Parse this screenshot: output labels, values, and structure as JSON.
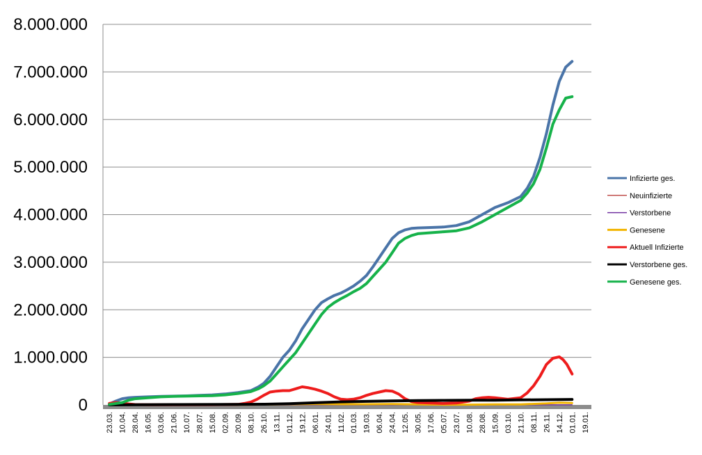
{
  "chart_data": {
    "type": "line",
    "title": "",
    "xlabel": "",
    "ylabel": "",
    "ylim": [
      0,
      8000000
    ],
    "grid": true,
    "legend_position": "right",
    "yticks": [
      {
        "value": 0,
        "label": "0"
      },
      {
        "value": 1000000,
        "label": "1.000.000"
      },
      {
        "value": 2000000,
        "label": "2.000.000"
      },
      {
        "value": 3000000,
        "label": "3.000.000"
      },
      {
        "value": 4000000,
        "label": "4.000.000"
      },
      {
        "value": 5000000,
        "label": "5.000.000"
      },
      {
        "value": 6000000,
        "label": "6.000.000"
      },
      {
        "value": 7000000,
        "label": "7.000.000"
      },
      {
        "value": 8000000,
        "label": "8.000.000"
      }
    ],
    "xticks": [
      "23.03.",
      "10.04.",
      "28.04.",
      "16.05.",
      "03.06.",
      "21.06.",
      "10.07.",
      "28.07.",
      "15.08.",
      "02.09.",
      "20.09.",
      "08.10.",
      "26.10.",
      "13.11.",
      "01.12.",
      "19.12.",
      "06.01.",
      "24.01.",
      "11.02.",
      "01.03.",
      "19.03.",
      "06.04.",
      "24.04.",
      "12.05.",
      "30.05.",
      "17.06.",
      "05.07.",
      "23.07.",
      "10.08.",
      "28.08.",
      "15.09.",
      "03.10.",
      "21.10.",
      "08.11.",
      "26.11.",
      "14.12.",
      "01.01.",
      "19.01."
    ],
    "series": [
      {
        "name": "Infizierte ges.",
        "color": "#4a74a8",
        "width": 4,
        "points": [
          [
            0,
            20000
          ],
          [
            0.5,
            80000
          ],
          [
            1,
            130000
          ],
          [
            1.5,
            150000
          ],
          [
            2,
            160000
          ],
          [
            3,
            170000
          ],
          [
            4,
            180000
          ],
          [
            5,
            185000
          ],
          [
            6,
            190000
          ],
          [
            7,
            200000
          ],
          [
            8,
            210000
          ],
          [
            9,
            230000
          ],
          [
            10,
            260000
          ],
          [
            11,
            300000
          ],
          [
            11.6,
            380000
          ],
          [
            12,
            450000
          ],
          [
            12.5,
            600000
          ],
          [
            13,
            800000
          ],
          [
            13.5,
            1000000
          ],
          [
            14,
            1150000
          ],
          [
            14.5,
            1350000
          ],
          [
            15,
            1600000
          ],
          [
            15.5,
            1800000
          ],
          [
            16,
            2000000
          ],
          [
            16.5,
            2150000
          ],
          [
            17,
            2230000
          ],
          [
            17.5,
            2300000
          ],
          [
            18,
            2350000
          ],
          [
            18.5,
            2420000
          ],
          [
            19,
            2500000
          ],
          [
            19.5,
            2600000
          ],
          [
            20,
            2720000
          ],
          [
            20.5,
            2900000
          ],
          [
            21,
            3100000
          ],
          [
            21.5,
            3300000
          ],
          [
            22,
            3500000
          ],
          [
            22.5,
            3620000
          ],
          [
            23,
            3680000
          ],
          [
            23.5,
            3710000
          ],
          [
            24,
            3720000
          ],
          [
            25,
            3730000
          ],
          [
            26,
            3740000
          ],
          [
            27,
            3770000
          ],
          [
            28,
            3850000
          ],
          [
            29,
            4000000
          ],
          [
            30,
            4150000
          ],
          [
            31,
            4250000
          ],
          [
            32,
            4380000
          ],
          [
            32.5,
            4550000
          ],
          [
            33,
            4800000
          ],
          [
            33.5,
            5200000
          ],
          [
            34,
            5700000
          ],
          [
            34.5,
            6300000
          ],
          [
            35,
            6800000
          ],
          [
            35.5,
            7100000
          ],
          [
            36,
            7220000
          ]
        ]
      },
      {
        "name": "Neuinfizierte",
        "color": "#c0504d",
        "width": 1.5,
        "points": [
          [
            0,
            0
          ],
          [
            1,
            5000
          ],
          [
            2,
            3000
          ],
          [
            3,
            1000
          ],
          [
            10,
            1000
          ],
          [
            12,
            10000
          ],
          [
            14,
            25000
          ],
          [
            16,
            20000
          ],
          [
            18,
            12000
          ],
          [
            20,
            15000
          ],
          [
            22,
            18000
          ],
          [
            24,
            5000
          ],
          [
            26,
            2000
          ],
          [
            28,
            8000
          ],
          [
            30,
            12000
          ],
          [
            32,
            10000
          ],
          [
            34,
            40000
          ],
          [
            35,
            50000
          ],
          [
            36,
            30000
          ]
        ]
      },
      {
        "name": "Verstorbene",
        "color": "#7030a0",
        "width": 1.5,
        "points": [
          [
            0,
            0
          ],
          [
            36,
            1000
          ]
        ]
      },
      {
        "name": "Genesene",
        "color": "#f2b400",
        "width": 3,
        "points": [
          [
            0,
            2000
          ],
          [
            10,
            3000
          ],
          [
            12,
            8000
          ],
          [
            14,
            15000
          ],
          [
            16,
            18000
          ],
          [
            18,
            15000
          ],
          [
            20,
            15000
          ],
          [
            22,
            18000
          ],
          [
            24,
            10000
          ],
          [
            26,
            5000
          ],
          [
            28,
            6000
          ],
          [
            30,
            10000
          ],
          [
            32,
            12000
          ],
          [
            34,
            30000
          ],
          [
            35,
            45000
          ],
          [
            36,
            40000
          ]
        ]
      },
      {
        "name": "Aktuell Infizierte",
        "color": "#ee1c1c",
        "width": 4,
        "points": [
          [
            0,
            30000
          ],
          [
            0.5,
            50000
          ],
          [
            1,
            40000
          ],
          [
            1.5,
            20000
          ],
          [
            2,
            8000
          ],
          [
            3,
            5000
          ],
          [
            5,
            4000
          ],
          [
            8,
            6000
          ],
          [
            10,
            10000
          ],
          [
            10.5,
            30000
          ],
          [
            11,
            60000
          ],
          [
            11.5,
            120000
          ],
          [
            12,
            200000
          ],
          [
            12.5,
            270000
          ],
          [
            13,
            290000
          ],
          [
            13.5,
            300000
          ],
          [
            14,
            300000
          ],
          [
            14.5,
            340000
          ],
          [
            15,
            380000
          ],
          [
            15.5,
            360000
          ],
          [
            16,
            330000
          ],
          [
            16.5,
            290000
          ],
          [
            17,
            240000
          ],
          [
            17.5,
            170000
          ],
          [
            18,
            120000
          ],
          [
            18.5,
            110000
          ],
          [
            19,
            120000
          ],
          [
            19.5,
            150000
          ],
          [
            20,
            200000
          ],
          [
            20.5,
            240000
          ],
          [
            21,
            270000
          ],
          [
            21.5,
            300000
          ],
          [
            22,
            290000
          ],
          [
            22.5,
            230000
          ],
          [
            23,
            130000
          ],
          [
            23.5,
            70000
          ],
          [
            24,
            50000
          ],
          [
            25,
            40000
          ],
          [
            26,
            30000
          ],
          [
            27,
            40000
          ],
          [
            28,
            80000
          ],
          [
            28.5,
            130000
          ],
          [
            29,
            150000
          ],
          [
            29.5,
            160000
          ],
          [
            30,
            150000
          ],
          [
            31,
            120000
          ],
          [
            32,
            150000
          ],
          [
            32.5,
            250000
          ],
          [
            33,
            400000
          ],
          [
            33.5,
            600000
          ],
          [
            34,
            850000
          ],
          [
            34.5,
            980000
          ],
          [
            35,
            1010000
          ],
          [
            35.3,
            950000
          ],
          [
            35.6,
            850000
          ],
          [
            36,
            650000
          ]
        ]
      },
      {
        "name": "Verstorbene ges.",
        "color": "#000000",
        "width": 4,
        "points": [
          [
            0,
            0
          ],
          [
            2,
            5000
          ],
          [
            5,
            8000
          ],
          [
            10,
            10000
          ],
          [
            12,
            15000
          ],
          [
            14,
            25000
          ],
          [
            16,
            45000
          ],
          [
            18,
            65000
          ],
          [
            20,
            75000
          ],
          [
            22,
            85000
          ],
          [
            24,
            90000
          ],
          [
            26,
            95000
          ],
          [
            28,
            98000
          ],
          [
            30,
            100000
          ],
          [
            32,
            105000
          ],
          [
            34,
            110000
          ],
          [
            36,
            115000
          ]
        ]
      },
      {
        "name": "Genesene ges.",
        "color": "#16b24a",
        "width": 4,
        "points": [
          [
            0,
            10000
          ],
          [
            1,
            50000
          ],
          [
            1.5,
            100000
          ],
          [
            2,
            130000
          ],
          [
            3,
            150000
          ],
          [
            4,
            170000
          ],
          [
            5,
            180000
          ],
          [
            6,
            185000
          ],
          [
            7,
            190000
          ],
          [
            8,
            195000
          ],
          [
            9,
            210000
          ],
          [
            10,
            240000
          ],
          [
            11,
            280000
          ],
          [
            11.6,
            340000
          ],
          [
            12,
            400000
          ],
          [
            12.5,
            500000
          ],
          [
            13,
            650000
          ],
          [
            13.5,
            800000
          ],
          [
            14,
            950000
          ],
          [
            14.5,
            1100000
          ],
          [
            15,
            1300000
          ],
          [
            15.5,
            1500000
          ],
          [
            16,
            1700000
          ],
          [
            16.5,
            1900000
          ],
          [
            17,
            2050000
          ],
          [
            17.5,
            2150000
          ],
          [
            18,
            2230000
          ],
          [
            18.5,
            2300000
          ],
          [
            19,
            2380000
          ],
          [
            19.5,
            2450000
          ],
          [
            20,
            2550000
          ],
          [
            20.5,
            2700000
          ],
          [
            21,
            2850000
          ],
          [
            21.5,
            3000000
          ],
          [
            22,
            3200000
          ],
          [
            22.5,
            3400000
          ],
          [
            23,
            3500000
          ],
          [
            23.5,
            3560000
          ],
          [
            24,
            3600000
          ],
          [
            25,
            3620000
          ],
          [
            26,
            3640000
          ],
          [
            27,
            3660000
          ],
          [
            28,
            3720000
          ],
          [
            29,
            3850000
          ],
          [
            30,
            4000000
          ],
          [
            31,
            4150000
          ],
          [
            32,
            4300000
          ],
          [
            32.5,
            4450000
          ],
          [
            33,
            4650000
          ],
          [
            33.5,
            4950000
          ],
          [
            34,
            5400000
          ],
          [
            34.5,
            5900000
          ],
          [
            35,
            6200000
          ],
          [
            35.5,
            6450000
          ],
          [
            36,
            6480000
          ]
        ]
      }
    ]
  }
}
